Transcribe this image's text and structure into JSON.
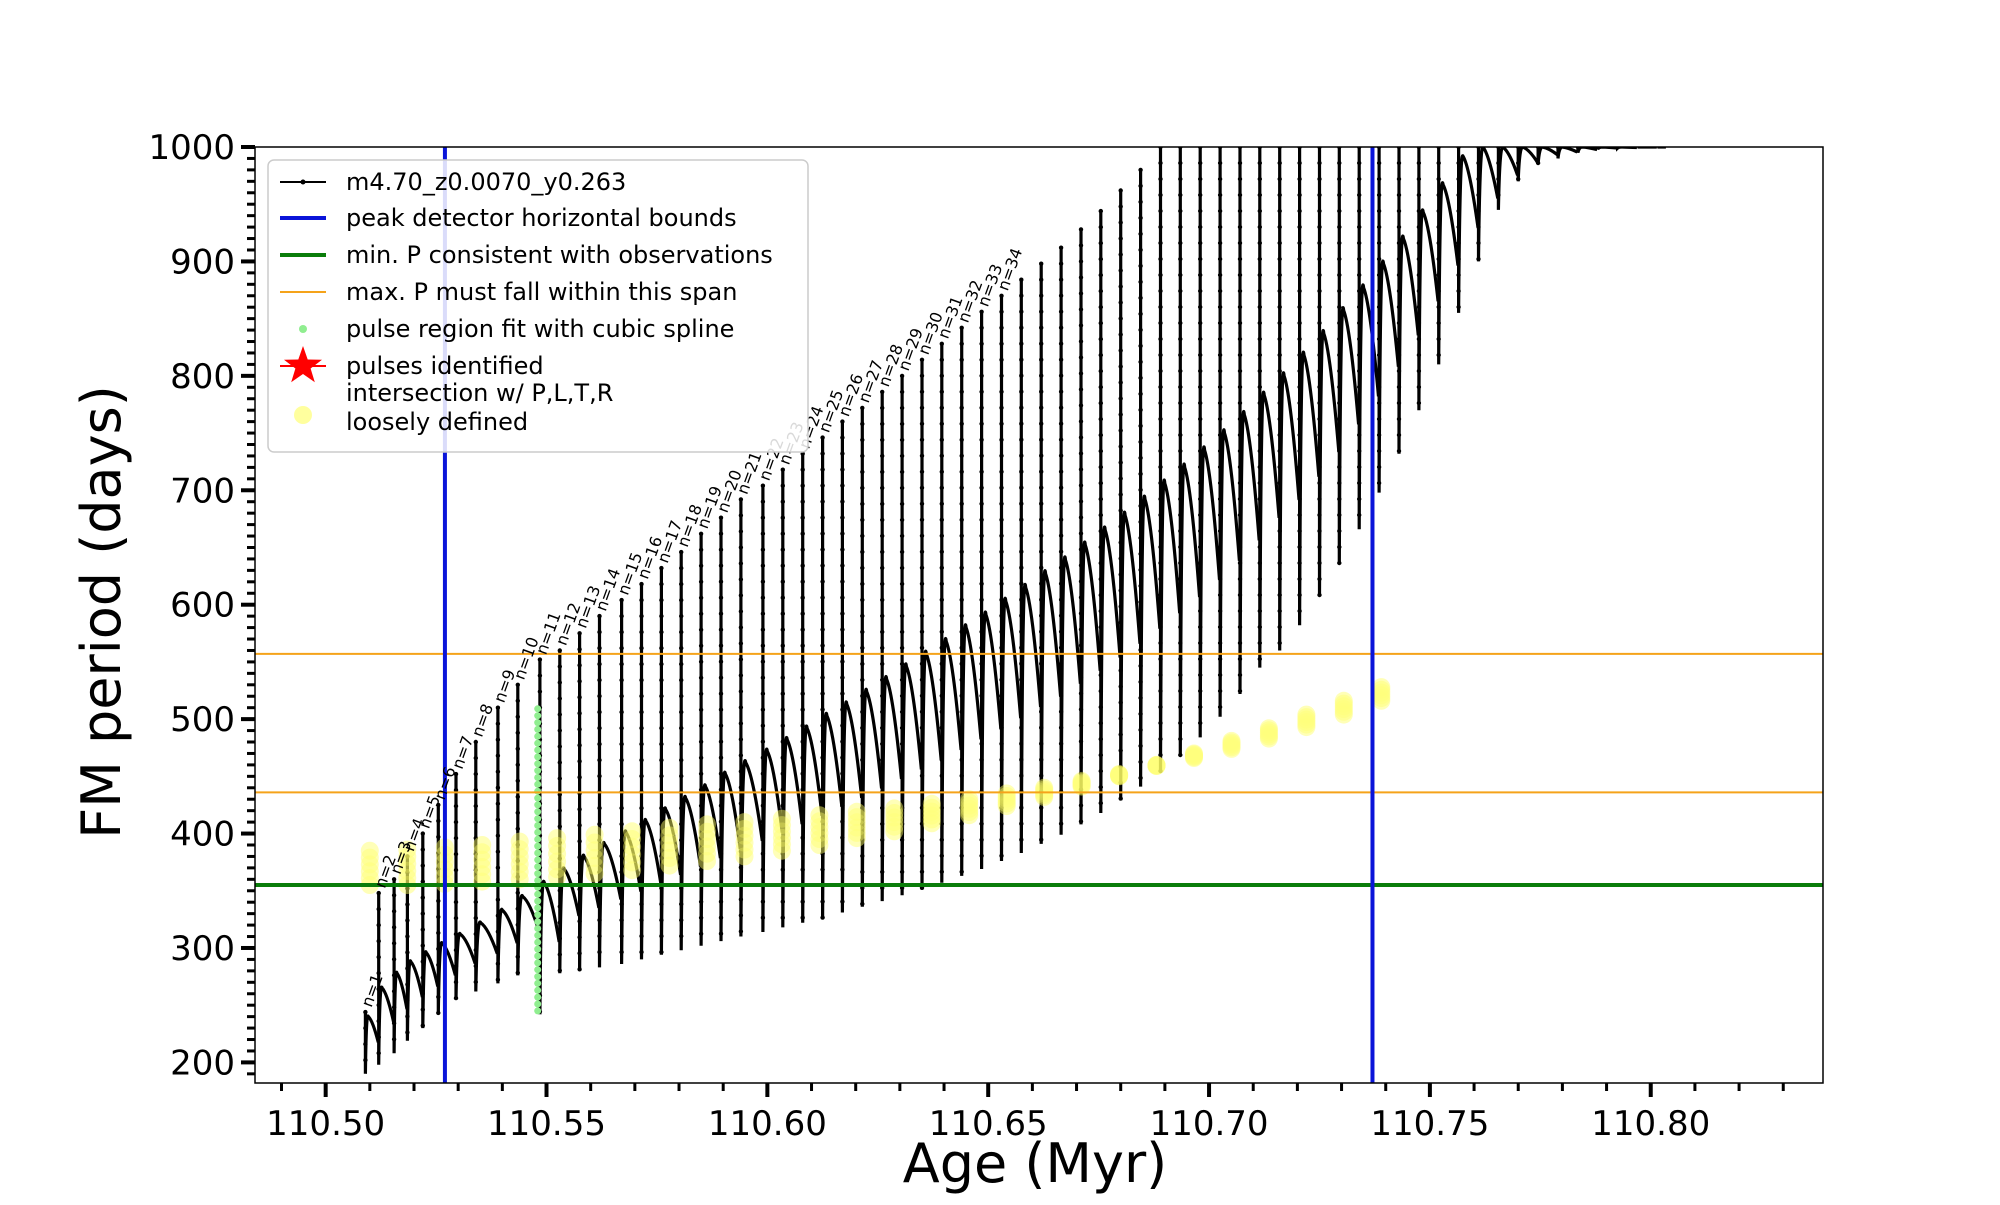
{
  "chart_data": {
    "type": "line",
    "xlabel": "Age (Myr)",
    "ylabel": "FM period (days)",
    "xlim": [
      110.484,
      110.839
    ],
    "ylim": [
      182,
      1000
    ],
    "x_ticks": [
      110.5,
      110.55,
      110.6,
      110.65,
      110.7,
      110.75,
      110.8
    ],
    "x_tick_labels": [
      "110.50",
      "110.55",
      "110.60",
      "110.65",
      "110.70",
      "110.75",
      "110.80"
    ],
    "y_ticks": [
      200,
      300,
      400,
      500,
      600,
      700,
      800,
      900,
      1000
    ],
    "y_tick_labels": [
      "200",
      "300",
      "400",
      "500",
      "600",
      "700",
      "800",
      "900",
      "1000"
    ],
    "grid": false,
    "legend_position": "top-left",
    "legend": [
      {
        "label": "m4.70_z0.0070_y0.263",
        "kind": "line-marker",
        "color": "#000000"
      },
      {
        "label": "peak detector horizontal bounds",
        "kind": "line",
        "color": "#0a14d9"
      },
      {
        "label": "min. P consistent with observations",
        "kind": "line",
        "color": "#0a7d0a"
      },
      {
        "label": "max. P must fall within this span",
        "kind": "line",
        "color": "#f5a31a"
      },
      {
        "label": "pulse region fit with cubic spline",
        "kind": "dot",
        "color": "#90ee90"
      },
      {
        "label": "pulses identified",
        "kind": "star",
        "color": "#ff0000"
      },
      {
        "label": "intersection w/ P,L,T,R\nloosely defined",
        "kind": "dot",
        "color": "#ffff9e"
      }
    ],
    "reference_lines": {
      "vertical": [
        110.527,
        110.737
      ],
      "min_period": 355,
      "max_period_span": [
        436,
        557
      ]
    },
    "series": [
      {
        "name": "m4.70_z0.0070_y0.263",
        "type": "pulse_sawtooth",
        "pulse_ages": [
          110.509,
          110.512,
          110.5155,
          110.5185,
          110.522,
          110.5255,
          110.5295,
          110.534,
          110.539,
          110.5435,
          110.5485,
          110.553,
          110.5575,
          110.562,
          110.567,
          110.5715,
          110.576,
          110.5805,
          110.585,
          110.5895,
          110.594,
          110.599,
          110.6035,
          110.608,
          110.6125,
          110.617,
          110.6215,
          110.626,
          110.6305,
          110.635,
          110.6395,
          110.644,
          110.6485,
          110.653,
          110.6575,
          110.662,
          110.6665,
          110.671,
          110.6755,
          110.68,
          110.6845,
          110.689,
          110.6935,
          110.698,
          110.7025,
          110.707,
          110.7115,
          110.716,
          110.7205,
          110.725,
          110.7295,
          110.734,
          110.7385,
          110.743,
          110.7475,
          110.752,
          110.7565,
          110.761,
          110.7655,
          110.77,
          110.7745,
          110.779,
          110.7835,
          110.788,
          110.7925,
          110.797,
          110.8015
        ],
        "peak_periods": [
          240,
          265,
          278,
          288,
          296,
          304,
          312,
          322,
          333,
          345,
          357,
          369,
          380,
          391,
          401,
          411,
          421,
          431,
          441,
          452,
          462,
          472,
          482,
          492,
          503,
          513,
          524,
          535,
          546,
          557,
          568,
          580,
          591,
          603,
          615,
          627,
          639,
          652,
          665,
          678,
          692,
          706,
          720,
          735,
          750,
          766,
          783,
          800,
          818,
          837,
          857,
          877,
          898,
          920,
          943,
          967,
          992,
          1000,
          1000,
          1000,
          1000,
          1000,
          1000,
          1000,
          1000,
          1000,
          1000
        ],
        "flash_tops": [
          244,
          348,
          360,
          380,
          400,
          425,
          452,
          480,
          510,
          530,
          552,
          560,
          575,
          590,
          604,
          618,
          632,
          646,
          662,
          676,
          692,
          704,
          718,
          732,
          746,
          760,
          772,
          786,
          800,
          814,
          828,
          842,
          856,
          870,
          884,
          898,
          912,
          928,
          944,
          962,
          980,
          1000,
          1000,
          1000,
          1000,
          1000,
          1000,
          1000,
          1000,
          1000,
          1000,
          1000,
          1000,
          1000,
          1000,
          1000,
          1000,
          1000,
          1000,
          1000,
          1000,
          1000,
          1000,
          1000,
          1000,
          1000,
          1000
        ],
        "dip_minima": [
          190,
          198,
          208,
          219,
          230,
          242,
          255,
          262,
          269,
          276,
          242,
          278,
          280,
          283,
          286,
          290,
          294,
          298,
          302,
          306,
          310,
          314,
          318,
          322,
          326,
          331,
          336,
          341,
          346,
          351,
          357,
          363,
          369,
          376,
          383,
          391,
          399,
          408,
          418,
          429,
          441,
          454,
          468,
          484,
          502,
          522,
          545,
          560,
          582,
          608,
          636,
          666,
          698,
          732,
          770,
          810,
          855,
          900,
          945,
          970,
          985,
          990,
          995,
          998,
          999,
          1000,
          1000
        ]
      }
    ],
    "pulse_labels": [
      {
        "n": 1,
        "text": "n=1"
      },
      {
        "n": 2,
        "text": "n=2"
      },
      {
        "n": 3,
        "text": "n=3"
      },
      {
        "n": 4,
        "text": "n=4"
      },
      {
        "n": 5,
        "text": "n=5"
      },
      {
        "n": 6,
        "text": "n=6"
      },
      {
        "n": 7,
        "text": "n=7"
      },
      {
        "n": 8,
        "text": "n=8"
      },
      {
        "n": 9,
        "text": "n=9"
      },
      {
        "n": 10,
        "text": "n=10"
      },
      {
        "n": 11,
        "text": "n=11"
      },
      {
        "n": 12,
        "text": "n=12"
      },
      {
        "n": 13,
        "text": "n=13"
      },
      {
        "n": 14,
        "text": "n=14"
      },
      {
        "n": 15,
        "text": "n=15"
      },
      {
        "n": 16,
        "text": "n=16"
      },
      {
        "n": 17,
        "text": "n=17"
      },
      {
        "n": 18,
        "text": "n=18"
      },
      {
        "n": 19,
        "text": "n=19"
      },
      {
        "n": 20,
        "text": "n=20"
      },
      {
        "n": 21,
        "text": "n=21"
      },
      {
        "n": 22,
        "text": "n=22"
      },
      {
        "n": 23,
        "text": "n=23"
      },
      {
        "n": 24,
        "text": "n=24"
      },
      {
        "n": 25,
        "text": "n=25"
      },
      {
        "n": 26,
        "text": "n=26"
      },
      {
        "n": 27,
        "text": "n=27"
      },
      {
        "n": 28,
        "text": "n=28"
      },
      {
        "n": 29,
        "text": "n=29"
      },
      {
        "n": 30,
        "text": "n=30"
      },
      {
        "n": 31,
        "text": "n=31"
      },
      {
        "n": 32,
        "text": "n=32"
      },
      {
        "n": 33,
        "text": "n=33"
      },
      {
        "n": 34,
        "text": "n=34"
      }
    ],
    "spline_region": {
      "age": 110.548,
      "period_range": [
        245,
        510
      ]
    },
    "loosely_defined_intersections": {
      "age_range": [
        110.51,
        110.739
      ],
      "period_band_low": [
        355,
        355,
        356,
        358,
        360,
        362,
        365,
        368,
        372,
        376,
        380,
        385,
        390,
        396,
        402,
        409,
        416,
        424,
        432,
        441,
        450,
        460,
        470,
        481,
        492,
        504,
        516,
        528
      ],
      "period_band_high": [
        385,
        386,
        388,
        390,
        393,
        396,
        399,
        402,
        405,
        408,
        410,
        413,
        416,
        419,
        422,
        426,
        430,
        435,
        440,
        446,
        452,
        459,
        466,
        474,
        483,
        493,
        504,
        516
      ]
    }
  }
}
